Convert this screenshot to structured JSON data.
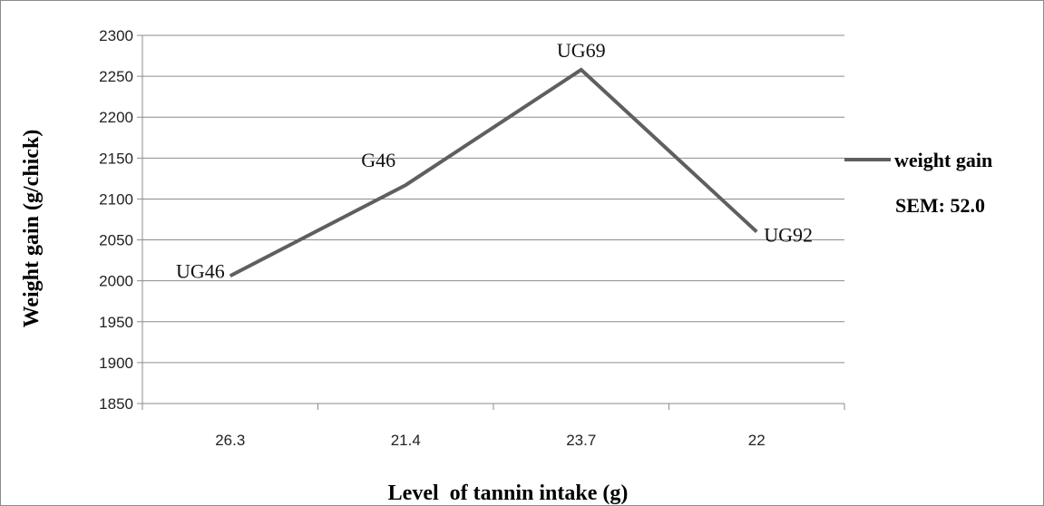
{
  "chart_data": {
    "type": "line",
    "categories": [
      "26.3",
      "21.4",
      "23.7",
      "22"
    ],
    "series": [
      {
        "name": "weight gain",
        "values": [
          2006,
          2117,
          2258,
          2060
        ],
        "point_labels": [
          "UG46",
          "G46",
          "UG69",
          "UG92"
        ],
        "color": "#5f5f5f"
      }
    ],
    "xlabel": "Level  of tannin intake (g)",
    "ylabel": "Weight gain (g/chick)",
    "ylim": [
      1850,
      2300
    ],
    "yticks": [
      1850,
      1900,
      1950,
      2000,
      2050,
      2100,
      2150,
      2200,
      2250,
      2300
    ],
    "grid": true,
    "legend_placement": "right",
    "annotation": "SEM: 52.0"
  }
}
